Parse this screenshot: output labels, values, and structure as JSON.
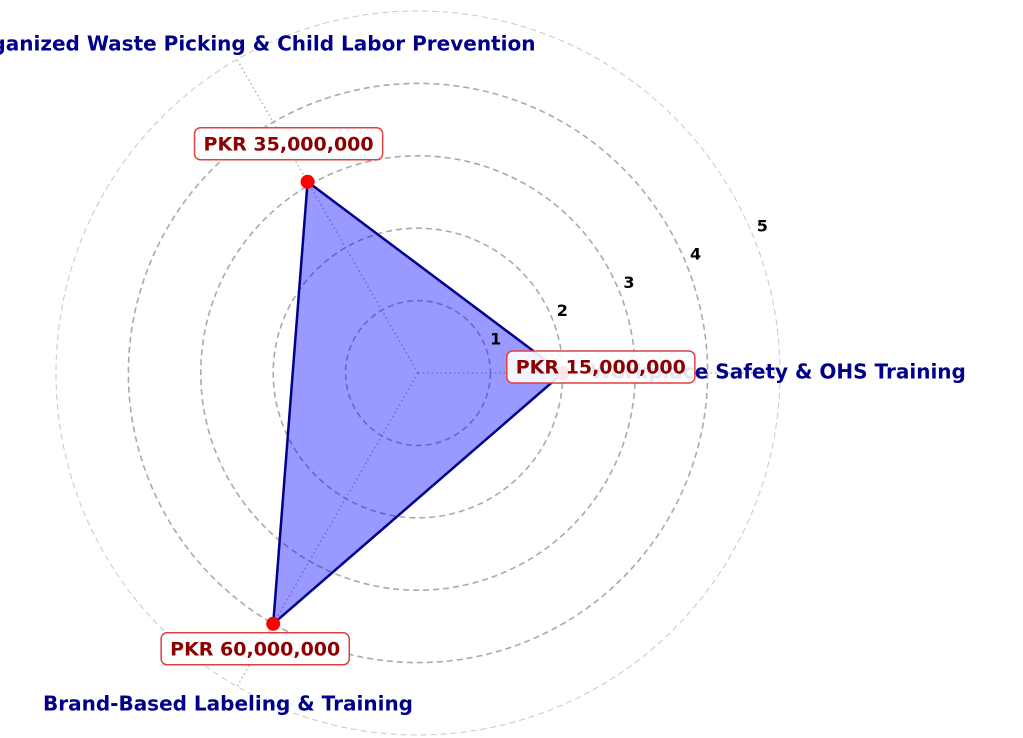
{
  "chart_data": {
    "type": "radar",
    "categories": [
      "Workplace Safety & OHS Training",
      "Organized Waste Picking & Child Labor Prevention",
      "Brand-Based Labeling & Training"
    ],
    "values": [
      2,
      3.05,
      4
    ],
    "value_labels": [
      "PKR 15,000,000",
      "PKR 35,000,000",
      "PKR 60,000,000"
    ],
    "color": "#0000ff",
    "edge_color": "#00008b",
    "point_color": "#ff0000",
    "ylim": [
      0,
      5
    ],
    "yticks": [
      1,
      2,
      3,
      4,
      5
    ],
    "grid": true
  }
}
